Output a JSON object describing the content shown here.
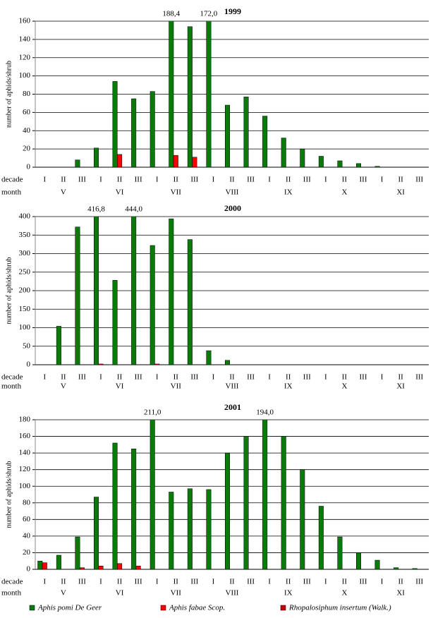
{
  "chart_data": [
    {
      "type": "bar",
      "title": "1999",
      "y_label": "number of aphids/shrub",
      "row_labels": [
        "decade",
        "month"
      ],
      "categories": [
        "I",
        "II",
        "III",
        "I",
        "II",
        "III",
        "I",
        "II",
        "III",
        "I",
        "II",
        "III",
        "I",
        "II",
        "III",
        "I",
        "II",
        "III",
        "I",
        "II",
        "III"
      ],
      "months": [
        "V",
        "VI",
        "VII",
        "VIII",
        "IX",
        "X",
        "XI"
      ],
      "ylim": [
        0,
        160
      ],
      "yticks": [
        0,
        20,
        40,
        60,
        80,
        100,
        120,
        140,
        160
      ],
      "grid": true,
      "series": [
        {
          "name": "Aphis pomi De Geer",
          "color": "#0a7a0a",
          "values": [
            0,
            0,
            8,
            21,
            94,
            75,
            83,
            188.4,
            154,
            172.0,
            68,
            77,
            56,
            32,
            20,
            12,
            7,
            4,
            1,
            0,
            0
          ],
          "value_labels": [
            null,
            null,
            null,
            null,
            null,
            null,
            null,
            "188,4",
            null,
            "172,0",
            null,
            null,
            null,
            null,
            null,
            null,
            null,
            null,
            null,
            null,
            null
          ]
        },
        {
          "name": "Aphis fabae Scop.",
          "color": "#ff0000",
          "values": [
            0,
            0,
            0,
            0,
            14,
            0,
            0,
            13,
            11,
            0,
            0,
            0,
            0,
            0,
            0,
            0,
            0,
            0,
            0,
            0,
            0
          ]
        },
        {
          "name": "Rhopalosiphum insertum (Walk.)",
          "color": "#cc0000",
          "values": [
            0,
            0,
            0,
            0,
            0,
            0,
            0,
            0,
            0,
            0,
            0,
            0,
            0,
            0,
            0,
            0,
            0,
            0,
            0,
            0,
            0
          ]
        }
      ]
    },
    {
      "type": "bar",
      "title": "2000",
      "y_label": "number of aphids/shrub",
      "row_labels": [
        "decade",
        "month"
      ],
      "categories": [
        "I",
        "II",
        "III",
        "I",
        "II",
        "III",
        "I",
        "II",
        "III",
        "I",
        "II",
        "III",
        "I",
        "II",
        "III",
        "I",
        "II",
        "III",
        "I",
        "II",
        "III"
      ],
      "months": [
        "V",
        "VI",
        "VII",
        "VIII",
        "IX",
        "X",
        "XI"
      ],
      "ylim": [
        0,
        400
      ],
      "yticks": [
        0,
        50,
        100,
        150,
        200,
        250,
        300,
        350,
        400
      ],
      "grid": true,
      "series": [
        {
          "name": "Aphis pomi De Geer",
          "color": "#0a7a0a",
          "values": [
            0,
            104,
            372,
            416.8,
            228,
            444.0,
            322,
            394,
            338,
            38,
            12,
            0,
            0,
            0,
            0,
            0,
            0,
            0,
            0,
            0,
            0
          ],
          "value_labels": [
            null,
            null,
            null,
            "416,8",
            null,
            "444,0",
            null,
            null,
            null,
            null,
            null,
            null,
            null,
            null,
            null,
            null,
            null,
            null,
            null,
            null,
            null
          ]
        },
        {
          "name": "Aphis fabae Scop.",
          "color": "#ff0000",
          "values": [
            0,
            0,
            0,
            2,
            0,
            0,
            2,
            0,
            0,
            0,
            0,
            0,
            0,
            0,
            0,
            0,
            0,
            0,
            0,
            0,
            0
          ]
        },
        {
          "name": "Rhopalosiphum insertum (Walk.)",
          "color": "#cc0000",
          "values": [
            0,
            0,
            0,
            0,
            0,
            0,
            0,
            0,
            0,
            0,
            0,
            0,
            0,
            0,
            0,
            0,
            0,
            0,
            0,
            0,
            0
          ]
        }
      ]
    },
    {
      "type": "bar",
      "title": "2001",
      "y_label": "number of aphids/shrub",
      "row_labels": [
        "decade",
        "month"
      ],
      "categories": [
        "I",
        "II",
        "III",
        "I",
        "II",
        "III",
        "I",
        "II",
        "III",
        "I",
        "II",
        "III",
        "I",
        "II",
        "III",
        "I",
        "II",
        "III",
        "I",
        "II",
        "III"
      ],
      "months": [
        "V",
        "VI",
        "VII",
        "VIII",
        "IX",
        "X",
        "XI"
      ],
      "ylim": [
        0,
        180
      ],
      "yticks": [
        0,
        20,
        40,
        60,
        80,
        100,
        120,
        140,
        160,
        180
      ],
      "grid": true,
      "series": [
        {
          "name": "Aphis pomi De Geer",
          "color": "#0a7a0a",
          "values": [
            10,
            17,
            39,
            87,
            152,
            145,
            211.0,
            93,
            97,
            96,
            140,
            160,
            194.0,
            160,
            120,
            76,
            39,
            20,
            11,
            2,
            1
          ],
          "value_labels": [
            null,
            null,
            null,
            null,
            null,
            null,
            "211,0",
            null,
            null,
            null,
            null,
            null,
            "194,0",
            null,
            null,
            null,
            null,
            null,
            null,
            null,
            null
          ]
        },
        {
          "name": "Aphis fabae Scop.",
          "color": "#ff0000",
          "values": [
            8,
            0,
            2,
            4,
            7,
            4,
            0,
            0,
            0,
            0,
            0,
            0,
            0,
            0,
            0,
            0,
            0,
            0,
            0,
            0,
            0
          ]
        },
        {
          "name": "Rhopalosiphum insertum (Walk.)",
          "color": "#cc0000",
          "values": [
            0,
            0,
            0,
            0,
            0,
            0,
            0,
            0,
            0,
            0,
            0,
            0,
            0,
            0,
            0,
            0,
            0,
            0,
            0,
            0,
            0
          ]
        }
      ]
    }
  ]
}
